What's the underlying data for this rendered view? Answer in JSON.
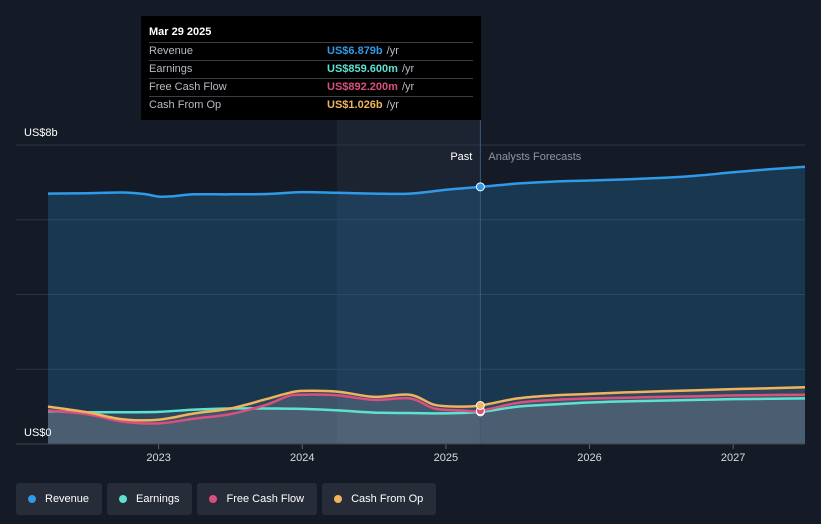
{
  "colors": {
    "background": "#151b26",
    "revenue": "#2f9ae8",
    "earnings": "#5ee2d0",
    "free_cash_flow": "#d9507f",
    "cash_from_op": "#f0b45c"
  },
  "tooltip": {
    "date": "Mar 29 2025",
    "rows": [
      {
        "label": "Revenue",
        "value": "US$6.879b",
        "unit": "/yr",
        "color": "#2f9ae8"
      },
      {
        "label": "Earnings",
        "value": "US$859.600m",
        "unit": "/yr",
        "color": "#5ee2d0"
      },
      {
        "label": "Free Cash Flow",
        "value": "US$892.200m",
        "unit": "/yr",
        "color": "#d9507f"
      },
      {
        "label": "Cash From Op",
        "value": "US$1.026b",
        "unit": "/yr",
        "color": "#f0b45c"
      }
    ]
  },
  "legend": [
    {
      "label": "Revenue",
      "color": "#2f9ae8"
    },
    {
      "label": "Earnings",
      "color": "#5ee2d0"
    },
    {
      "label": "Free Cash Flow",
      "color": "#d9507f"
    },
    {
      "label": "Cash From Op",
      "color": "#f0b45c"
    }
  ],
  "chart_data": {
    "type": "line",
    "y_top_label": "US$8b",
    "y_bottom_label": "US$0",
    "ylim": [
      0,
      8
    ],
    "xlim": [
      2022.23,
      2027.5
    ],
    "x_ticks": [
      2023,
      2024,
      2025,
      2026,
      2027
    ],
    "x_tick_labels": [
      "2023",
      "2024",
      "2025",
      "2026",
      "2027"
    ],
    "past_label": "Past",
    "forecast_label": "Analysts Forecasts",
    "past_region_start": 2024.24,
    "divider_x": 2025.24,
    "grid": true,
    "series": [
      {
        "name": "Revenue",
        "color": "#2f9ae8",
        "points": [
          [
            2022.23,
            6.7
          ],
          [
            2022.5,
            6.71
          ],
          [
            2022.75,
            6.73
          ],
          [
            2022.9,
            6.69
          ],
          [
            2023.0,
            6.62
          ],
          [
            2023.1,
            6.63
          ],
          [
            2023.25,
            6.68
          ],
          [
            2023.5,
            6.68
          ],
          [
            2023.75,
            6.69
          ],
          [
            2024.0,
            6.74
          ],
          [
            2024.25,
            6.72
          ],
          [
            2024.5,
            6.7
          ],
          [
            2024.75,
            6.7
          ],
          [
            2025.0,
            6.8
          ],
          [
            2025.24,
            6.88
          ]
        ],
        "forecast": [
          [
            2025.24,
            6.88
          ],
          [
            2025.5,
            6.97
          ],
          [
            2025.75,
            7.02
          ],
          [
            2026.0,
            7.05
          ],
          [
            2026.25,
            7.08
          ],
          [
            2026.5,
            7.12
          ],
          [
            2026.75,
            7.18
          ],
          [
            2027.0,
            7.27
          ],
          [
            2027.25,
            7.35
          ],
          [
            2027.5,
            7.42
          ]
        ]
      },
      {
        "name": "Earnings",
        "color": "#5ee2d0",
        "points": [
          [
            2022.23,
            0.88
          ],
          [
            2022.5,
            0.85
          ],
          [
            2022.75,
            0.85
          ],
          [
            2023.0,
            0.86
          ],
          [
            2023.25,
            0.92
          ],
          [
            2023.5,
            0.95
          ],
          [
            2023.75,
            0.95
          ],
          [
            2024.0,
            0.94
          ],
          [
            2024.25,
            0.9
          ],
          [
            2024.5,
            0.84
          ],
          [
            2024.75,
            0.83
          ],
          [
            2025.0,
            0.82
          ],
          [
            2025.24,
            0.86
          ]
        ],
        "forecast": [
          [
            2025.24,
            0.86
          ],
          [
            2025.5,
            1.0
          ],
          [
            2025.75,
            1.06
          ],
          [
            2026.0,
            1.11
          ],
          [
            2026.25,
            1.14
          ],
          [
            2026.5,
            1.16
          ],
          [
            2026.75,
            1.18
          ],
          [
            2027.0,
            1.2
          ],
          [
            2027.25,
            1.21
          ],
          [
            2027.5,
            1.22
          ]
        ]
      },
      {
        "name": "Free Cash Flow",
        "color": "#d9507f",
        "points": [
          [
            2022.23,
            0.9
          ],
          [
            2022.5,
            0.8
          ],
          [
            2022.75,
            0.6
          ],
          [
            2023.0,
            0.55
          ],
          [
            2023.25,
            0.68
          ],
          [
            2023.5,
            0.8
          ],
          [
            2023.75,
            1.05
          ],
          [
            2023.9,
            1.28
          ],
          [
            2024.0,
            1.32
          ],
          [
            2024.25,
            1.3
          ],
          [
            2024.5,
            1.18
          ],
          [
            2024.75,
            1.22
          ],
          [
            2024.92,
            0.95
          ],
          [
            2025.1,
            0.9
          ],
          [
            2025.24,
            0.89
          ]
        ],
        "forecast": [
          [
            2025.24,
            0.89
          ],
          [
            2025.5,
            1.1
          ],
          [
            2025.75,
            1.18
          ],
          [
            2026.0,
            1.22
          ],
          [
            2026.25,
            1.24
          ],
          [
            2026.5,
            1.26
          ],
          [
            2026.75,
            1.28
          ],
          [
            2027.0,
            1.3
          ],
          [
            2027.25,
            1.31
          ],
          [
            2027.5,
            1.32
          ]
        ]
      },
      {
        "name": "Cash From Op",
        "color": "#f0b45c",
        "points": [
          [
            2022.23,
            1.0
          ],
          [
            2022.5,
            0.85
          ],
          [
            2022.75,
            0.66
          ],
          [
            2023.0,
            0.65
          ],
          [
            2023.25,
            0.82
          ],
          [
            2023.5,
            0.95
          ],
          [
            2023.75,
            1.2
          ],
          [
            2023.9,
            1.36
          ],
          [
            2024.0,
            1.42
          ],
          [
            2024.25,
            1.4
          ],
          [
            2024.5,
            1.26
          ],
          [
            2024.75,
            1.32
          ],
          [
            2024.92,
            1.05
          ],
          [
            2025.1,
            1.0
          ],
          [
            2025.24,
            1.03
          ]
        ],
        "forecast": [
          [
            2025.24,
            1.03
          ],
          [
            2025.5,
            1.22
          ],
          [
            2025.75,
            1.3
          ],
          [
            2026.0,
            1.34
          ],
          [
            2026.25,
            1.38
          ],
          [
            2026.5,
            1.41
          ],
          [
            2026.75,
            1.44
          ],
          [
            2027.0,
            1.47
          ],
          [
            2027.25,
            1.49
          ],
          [
            2027.5,
            1.52
          ]
        ]
      }
    ]
  }
}
